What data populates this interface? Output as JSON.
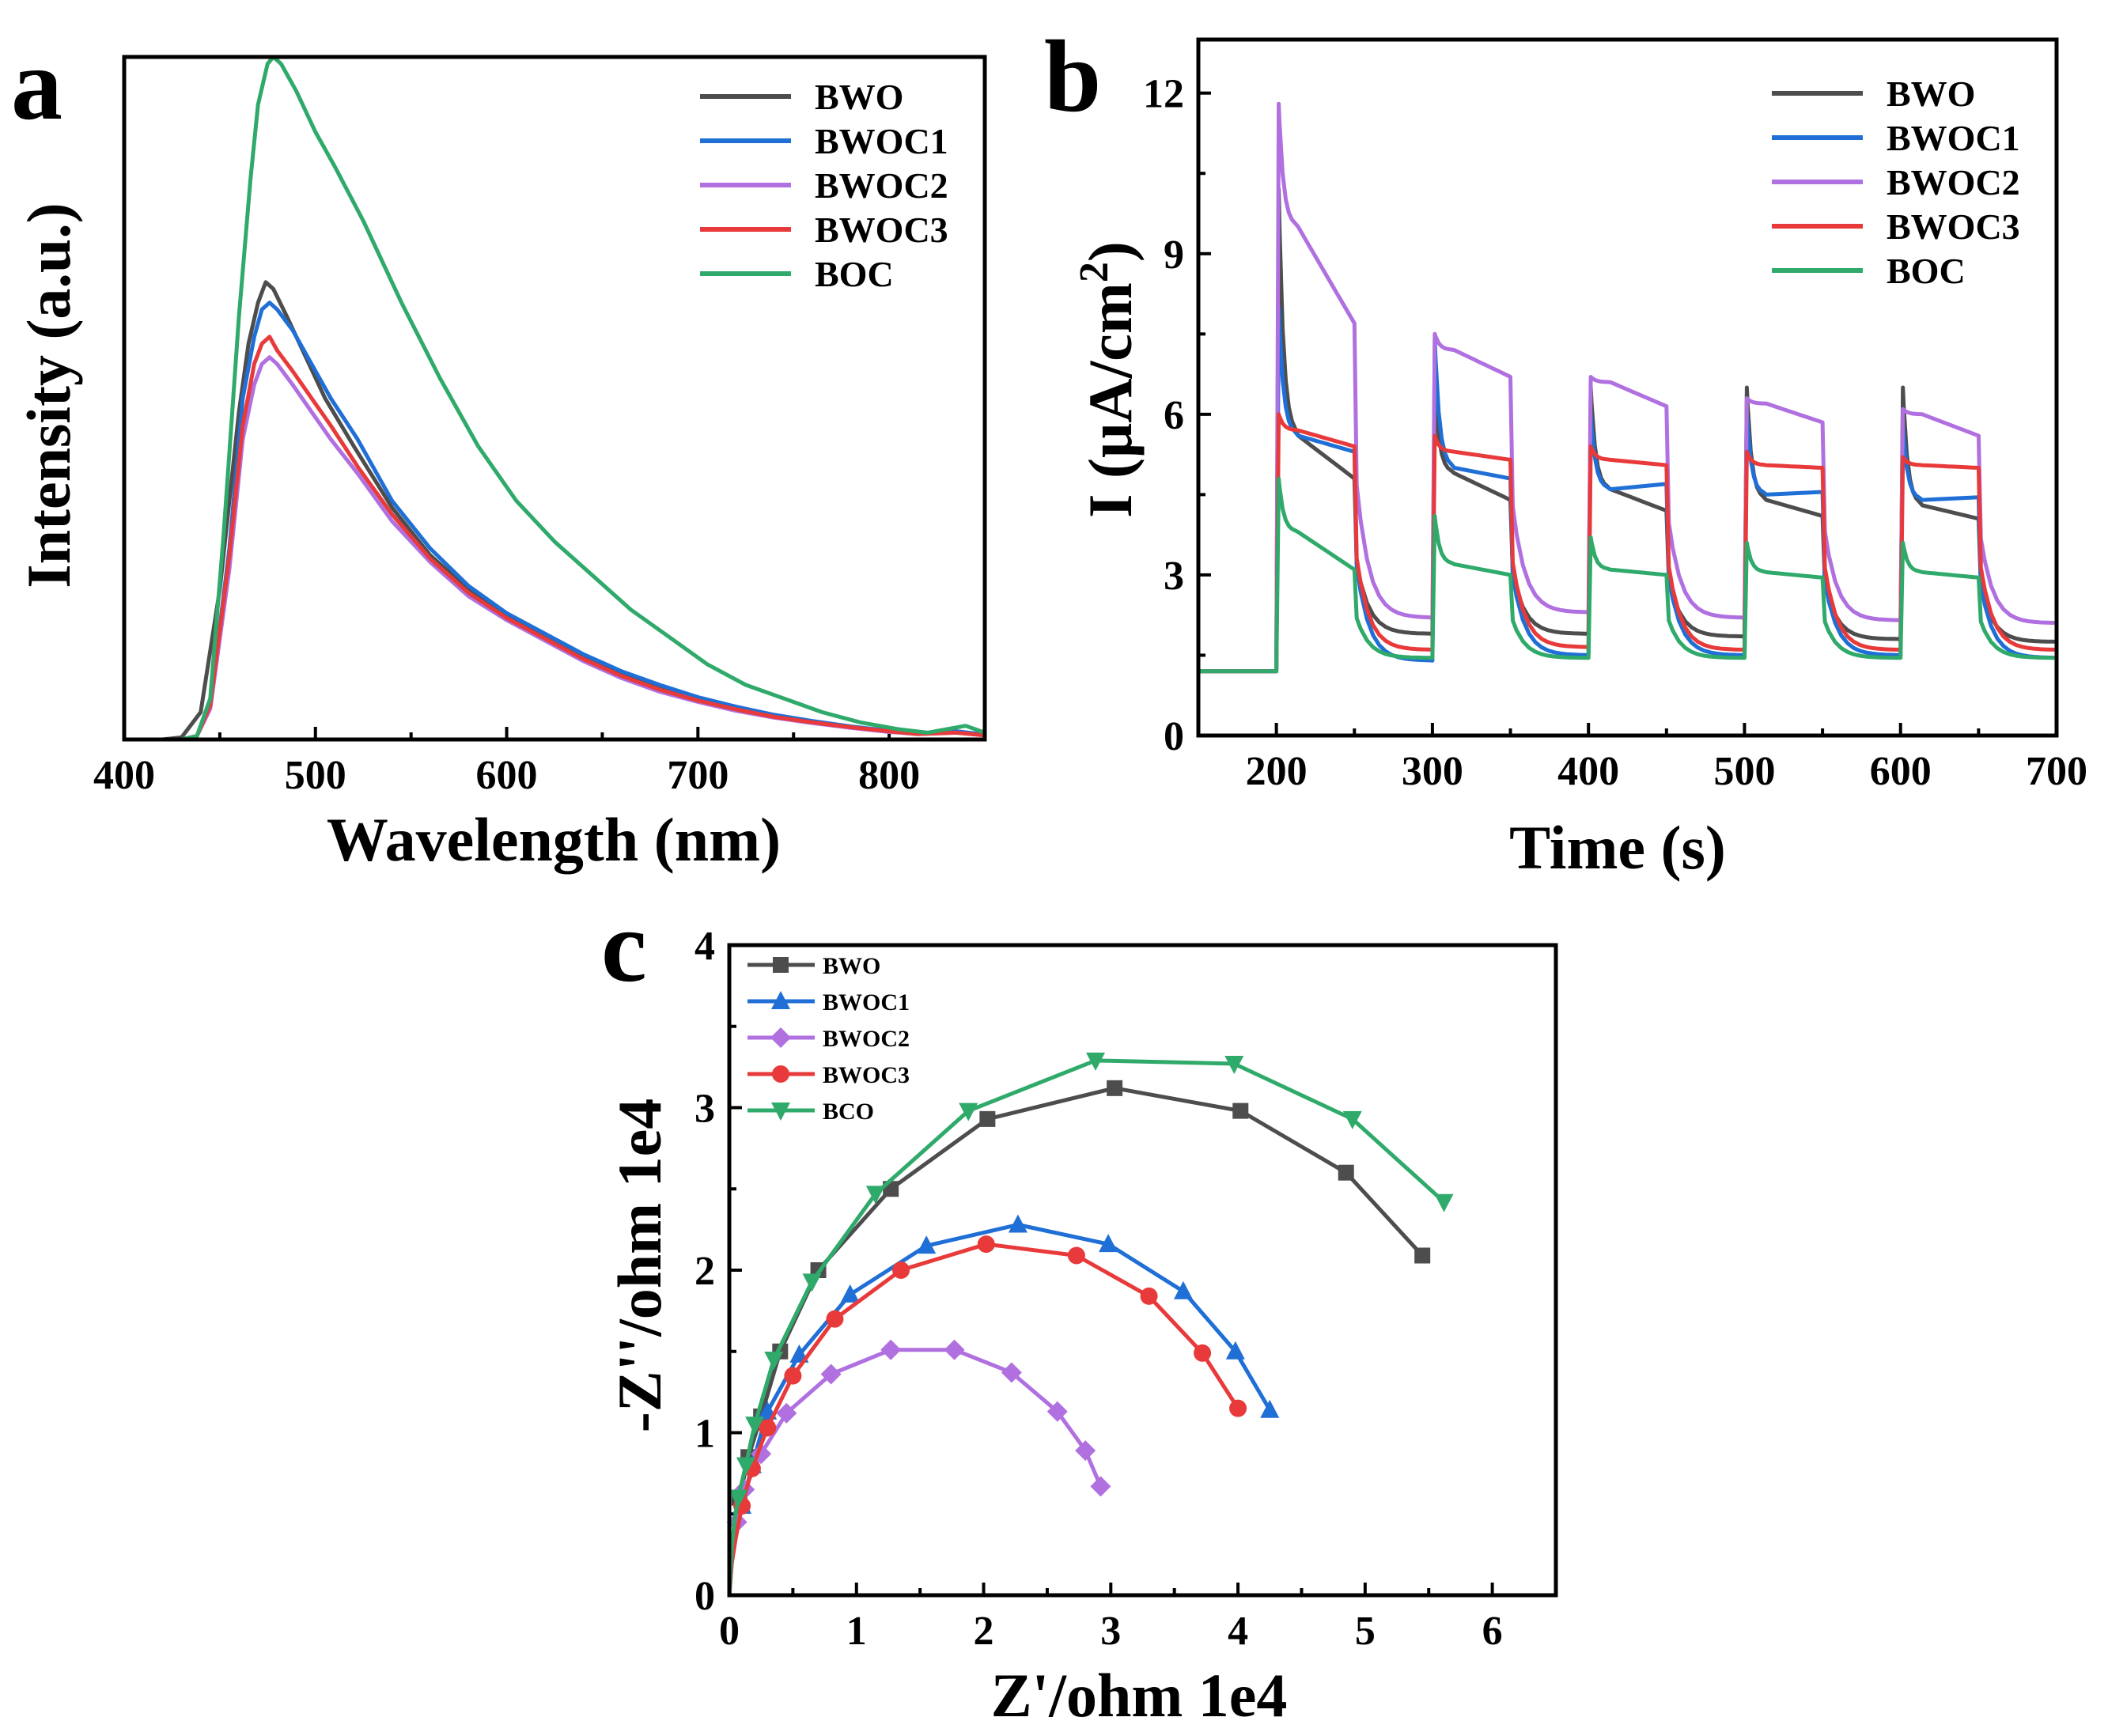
{
  "panels": {
    "a": "a",
    "b": "b",
    "c": "c"
  },
  "chart_data": [
    {
      "id": "a",
      "type": "line",
      "title": "",
      "xlabel": "Wavelength (nm)",
      "ylabel": "Intensity (a.u.)",
      "xlim": [
        400,
        850
      ],
      "ylim": [
        0,
        100
      ],
      "xticks": [
        400,
        500,
        600,
        700,
        800
      ],
      "yticks": [],
      "legend_position": "top-right",
      "series": [
        {
          "name": "BWO",
          "color": "#4d4d4d",
          "x": [
            400,
            420,
            430,
            440,
            450,
            460,
            465,
            470,
            474,
            478,
            485,
            495,
            505,
            520,
            540,
            560,
            580,
            600,
            620,
            640,
            660,
            680,
            700,
            720,
            740,
            760,
            780,
            800,
            815,
            825,
            835,
            850
          ],
          "y": [
            0,
            0,
            0.3,
            4,
            22,
            48,
            58,
            64,
            67,
            66,
            62,
            56,
            50,
            43,
            34,
            27,
            22,
            18,
            15,
            12,
            9.5,
            7.5,
            6,
            4.6,
            3.5,
            2.6,
            1.8,
            1.2,
            0.9,
            1,
            1.2,
            0.7
          ]
        },
        {
          "name": "BWOC1",
          "color": "#1f6fd6",
          "x": [
            400,
            430,
            438,
            445,
            455,
            462,
            468,
            472,
            476,
            480,
            488,
            498,
            508,
            522,
            540,
            560,
            580,
            600,
            620,
            640,
            660,
            680,
            700,
            720,
            740,
            760,
            780,
            800,
            815,
            825,
            835,
            850
          ],
          "y": [
            0,
            0,
            0.5,
            5,
            28,
            50,
            59,
            63,
            64,
            63,
            60,
            55,
            50,
            44,
            35,
            28,
            22.5,
            18.5,
            15.5,
            12.5,
            10,
            8,
            6.2,
            4.8,
            3.6,
            2.7,
            1.9,
            1.3,
            0.9,
            1,
            1.2,
            0.7
          ]
        },
        {
          "name": "BWOC2",
          "color": "#b070e0",
          "x": [
            400,
            430,
            438,
            445,
            455,
            462,
            468,
            472,
            476,
            480,
            488,
            498,
            508,
            522,
            540,
            560,
            580,
            600,
            620,
            640,
            660,
            680,
            700,
            720,
            740,
            760,
            780,
            800,
            815,
            825,
            835,
            850
          ],
          "y": [
            0,
            0,
            0.5,
            4.5,
            25,
            44,
            52,
            55,
            56,
            55,
            52,
            48,
            44,
            39,
            32,
            26,
            21,
            17.5,
            14.5,
            11.5,
            9,
            7,
            5.5,
            4.2,
            3.2,
            2.4,
            1.7,
            1.1,
            0.8,
            0.9,
            1,
            0.6
          ]
        },
        {
          "name": "BWOC3",
          "color": "#e83a3a",
          "x": [
            400,
            430,
            438,
            445,
            455,
            462,
            468,
            472,
            476,
            480,
            488,
            498,
            508,
            522,
            540,
            560,
            580,
            600,
            620,
            640,
            660,
            680,
            700,
            720,
            740,
            760,
            780,
            800,
            815,
            825,
            835,
            850
          ],
          "y": [
            0,
            0,
            0.5,
            5,
            27,
            46,
            55,
            58,
            59,
            57,
            54,
            50,
            46,
            40,
            33,
            26.5,
            21.5,
            17.8,
            14.8,
            11.8,
            9.3,
            7.3,
            5.7,
            4.4,
            3.3,
            2.5,
            1.8,
            1.2,
            0.8,
            0.9,
            1,
            0.6
          ]
        },
        {
          "name": "BOC",
          "color": "#2faa6a",
          "x": [
            400,
            430,
            438,
            445,
            452,
            460,
            466,
            470,
            475,
            478,
            482,
            490,
            500,
            510,
            525,
            545,
            565,
            585,
            605,
            625,
            645,
            665,
            685,
            705,
            725,
            745,
            765,
            785,
            805,
            820,
            830,
            840,
            850
          ],
          "y": [
            0,
            0,
            0.5,
            6,
            30,
            62,
            82,
            93,
            99,
            100,
            99,
            95,
            89,
            84,
            76,
            64,
            53,
            43,
            35,
            29,
            24,
            19,
            15,
            11,
            8,
            6,
            4,
            2.5,
            1.5,
            1,
            1.5,
            2,
            1
          ]
        }
      ]
    },
    {
      "id": "b",
      "type": "line",
      "title": "",
      "xlabel": "Time (s)",
      "ylabel": "I (μA/cm",
      "ylabel_sup": "2",
      "ylabel_tail": ")",
      "xlim": [
        150,
        700
      ],
      "ylim": [
        0,
        13
      ],
      "xticks": [
        200,
        300,
        400,
        500,
        600,
        700
      ],
      "yticks": [
        0,
        3,
        6,
        9,
        12
      ],
      "legend_position": "top-right",
      "light_on": [
        200,
        300,
        400,
        500,
        600
      ],
      "light_off": [
        250,
        350,
        450,
        550,
        650
      ],
      "series": [
        {
          "name": "BWO",
          "color": "#4d4d4d",
          "dark_base": 1.2,
          "first_spike": 10.2,
          "spikes": [
            6.5,
            6.5,
            6.5,
            6.5
          ],
          "on_start": [
            5.6,
            4.9,
            4.6,
            4.4,
            4.3
          ],
          "on_end": [
            4.8,
            4.4,
            4.2,
            4.1,
            4.05
          ],
          "off_end": [
            1.9,
            1.9,
            1.85,
            1.8,
            1.75
          ]
        },
        {
          "name": "BWOC1",
          "color": "#1f6fd6",
          "dark_base": 1.2,
          "first_spike": 8.0,
          "spikes": [
            7.4,
            6.0,
            6.0,
            5.8
          ],
          "on_start": [
            5.6,
            5.0,
            4.6,
            4.5,
            4.4
          ],
          "on_end": [
            5.3,
            4.8,
            4.7,
            4.55,
            4.45
          ],
          "off_end": [
            1.4,
            1.5,
            1.5,
            1.5,
            1.45
          ]
        },
        {
          "name": "BWOC2",
          "color": "#b070e0",
          "dark_base": 1.2,
          "first_spike": 11.8,
          "spikes": [
            7.5,
            6.7,
            6.3,
            6.1
          ],
          "on_start": [
            9.5,
            7.2,
            6.6,
            6.2,
            6.0
          ],
          "on_end": [
            7.7,
            6.7,
            6.15,
            5.85,
            5.6
          ],
          "off_end": [
            2.2,
            2.3,
            2.2,
            2.15,
            2.1
          ]
        },
        {
          "name": "BWOC3",
          "color": "#e83a3a",
          "dark_base": 1.2,
          "first_spike": 6.0,
          "spikes": [
            5.6,
            5.4,
            5.3,
            5.2
          ],
          "on_start": [
            5.7,
            5.3,
            5.15,
            5.05,
            5.05
          ],
          "on_end": [
            5.4,
            5.15,
            5.05,
            5.0,
            5.0
          ],
          "off_end": [
            1.6,
            1.65,
            1.6,
            1.6,
            1.6
          ]
        },
        {
          "name": "BOC",
          "color": "#2faa6a",
          "dark_base": 1.2,
          "first_spike": 4.8,
          "spikes": [
            4.1,
            3.7,
            3.6,
            3.6
          ],
          "on_start": [
            3.8,
            3.2,
            3.1,
            3.05,
            3.05
          ],
          "on_end": [
            3.1,
            3.0,
            3.0,
            2.95,
            2.95
          ],
          "off_end": [
            1.45,
            1.45,
            1.45,
            1.45,
            1.45
          ]
        }
      ]
    },
    {
      "id": "c",
      "type": "scatter",
      "title": "",
      "xlabel": "Z'/ohm 1e4",
      "ylabel": "-Z''/ohm 1e4",
      "xlim": [
        0,
        6.5
      ],
      "ylim": [
        0,
        4
      ],
      "xticks": [
        0,
        1,
        2,
        3,
        4,
        5,
        6
      ],
      "yticks": [
        0,
        1,
        2,
        3,
        4
      ],
      "legend_position": "top-left",
      "series": [
        {
          "name": "BWO",
          "color": "#4d4d4d",
          "marker": "square",
          "x": [
            0,
            0.02,
            0.04,
            0.08,
            0.15,
            0.25,
            0.4,
            0.7,
            1.27,
            2.03,
            3.03,
            4.02,
            4.85,
            5.45
          ],
          "y": [
            0,
            0.25,
            0.4,
            0.6,
            0.85,
            1.1,
            1.5,
            2.0,
            2.5,
            2.93,
            3.12,
            2.98,
            2.6,
            2.09
          ]
        },
        {
          "name": "BWOC1",
          "color": "#1f6fd6",
          "marker": "triangle-up",
          "x": [
            0,
            0.02,
            0.05,
            0.1,
            0.18,
            0.3,
            0.55,
            0.95,
            1.55,
            2.27,
            2.98,
            3.57,
            3.98,
            4.25
          ],
          "y": [
            0,
            0.2,
            0.35,
            0.55,
            0.8,
            1.13,
            1.48,
            1.85,
            2.15,
            2.28,
            2.16,
            1.87,
            1.5,
            1.14
          ]
        },
        {
          "name": "BWOC2",
          "color": "#b070e0",
          "marker": "diamond",
          "x": [
            0,
            0.01,
            0.03,
            0.06,
            0.12,
            0.25,
            0.45,
            0.8,
            1.27,
            1.77,
            2.22,
            2.58,
            2.8,
            2.92
          ],
          "y": [
            0,
            0.15,
            0.3,
            0.45,
            0.65,
            0.87,
            1.12,
            1.36,
            1.51,
            1.51,
            1.37,
            1.13,
            0.89,
            0.67
          ]
        },
        {
          "name": "BWOC3",
          "color": "#e83a3a",
          "marker": "circle",
          "x": [
            0,
            0.02,
            0.05,
            0.1,
            0.18,
            0.3,
            0.5,
            0.83,
            1.35,
            2.02,
            2.73,
            3.3,
            3.72,
            4.0
          ],
          "y": [
            0,
            0.2,
            0.35,
            0.55,
            0.78,
            1.03,
            1.35,
            1.7,
            2.0,
            2.16,
            2.09,
            1.84,
            1.49,
            1.15
          ]
        },
        {
          "name": "BCO",
          "color": "#2faa6a",
          "marker": "triangle-down",
          "x": [
            0,
            0.02,
            0.04,
            0.07,
            0.13,
            0.2,
            0.35,
            0.65,
            1.15,
            1.88,
            2.88,
            3.97,
            4.9,
            5.62
          ],
          "y": [
            0,
            0.3,
            0.45,
            0.6,
            0.8,
            1.05,
            1.45,
            1.93,
            2.47,
            2.98,
            3.29,
            3.27,
            2.93,
            2.42
          ]
        }
      ]
    }
  ]
}
